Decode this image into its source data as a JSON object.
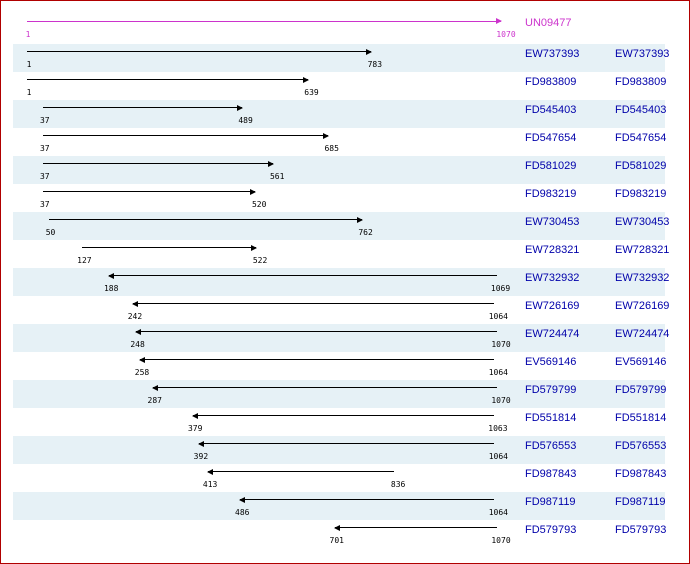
{
  "query": {
    "id": "UN09477",
    "start": 1,
    "end": 1070,
    "color": "#cc33cc"
  },
  "scale_max": 1070,
  "rows": [
    {
      "id": "EW737393",
      "id2": "EW737393",
      "start": 1,
      "end": 783,
      "dir": "forward"
    },
    {
      "id": "FD983809",
      "id2": "FD983809",
      "start": 1,
      "end": 639,
      "dir": "forward"
    },
    {
      "id": "FD545403",
      "id2": "FD545403",
      "start": 37,
      "end": 489,
      "dir": "forward"
    },
    {
      "id": "FD547654",
      "id2": "FD547654",
      "start": 37,
      "end": 685,
      "dir": "forward"
    },
    {
      "id": "FD581029",
      "id2": "FD581029",
      "start": 37,
      "end": 561,
      "dir": "forward"
    },
    {
      "id": "FD983219",
      "id2": "FD983219",
      "start": 37,
      "end": 520,
      "dir": "forward"
    },
    {
      "id": "EW730453",
      "id2": "EW730453",
      "start": 50,
      "end": 762,
      "dir": "forward"
    },
    {
      "id": "EW728321",
      "id2": "EW728321",
      "start": 127,
      "end": 522,
      "dir": "forward"
    },
    {
      "id": "EW732932",
      "id2": "EW732932",
      "start": 188,
      "end": 1069,
      "dir": "reverse"
    },
    {
      "id": "EW726169",
      "id2": "EW726169",
      "start": 242,
      "end": 1064,
      "dir": "reverse"
    },
    {
      "id": "EW724474",
      "id2": "EW724474",
      "start": 248,
      "end": 1070,
      "dir": "reverse"
    },
    {
      "id": "EV569146",
      "id2": "EV569146",
      "start": 258,
      "end": 1064,
      "dir": "reverse"
    },
    {
      "id": "FD579799",
      "id2": "FD579799",
      "start": 287,
      "end": 1070,
      "dir": "reverse"
    },
    {
      "id": "FD551814",
      "id2": "FD551814",
      "start": 379,
      "end": 1063,
      "dir": "reverse"
    },
    {
      "id": "FD576553",
      "id2": "FD576553",
      "start": 392,
      "end": 1064,
      "dir": "reverse"
    },
    {
      "id": "FD987843",
      "id2": "FD987843",
      "start": 413,
      "end": 836,
      "dir": "reverse"
    },
    {
      "id": "FD987119",
      "id2": "FD987119",
      "start": 486,
      "end": 1064,
      "dir": "reverse"
    },
    {
      "id": "FD579793",
      "id2": "FD579793",
      "start": 701,
      "end": 1070,
      "dir": "reverse"
    }
  ],
  "colors": {
    "link": "#0000aa",
    "stripe": "#e6f1f6",
    "border": "#b00000",
    "line": "#000000"
  }
}
